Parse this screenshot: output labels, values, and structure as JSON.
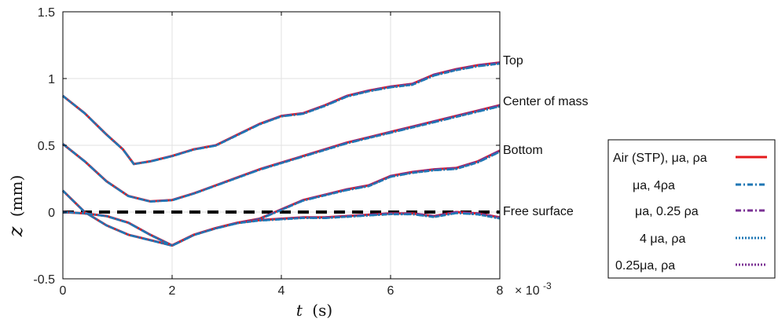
{
  "chart_data": {
    "type": "line",
    "xlabel_var": "t",
    "xlabel_unit": "(s)",
    "ylabel_var": "z",
    "ylabel_unit": "(mm)",
    "x_multiplier": "× 10",
    "x_multiplier_exp": "-3",
    "xlim": [
      0,
      0.008
    ],
    "ylim": [
      -0.5,
      1.5
    ],
    "x_ticks": [
      0,
      0.002,
      0.004,
      0.006,
      0.008
    ],
    "x_tick_labels": [
      "0",
      "2",
      "4",
      "6",
      "8"
    ],
    "y_ticks": [
      -0.5,
      0,
      0.5,
      1,
      1.5
    ],
    "y_tick_labels": [
      "-0.5",
      "0",
      "0.5",
      "1",
      "1.5"
    ],
    "grid": true,
    "legend_position": "right",
    "line_labels": [
      "Top",
      "Center of mass",
      "Bottom",
      "Free surface"
    ],
    "free_surface": {
      "label": "Free surface",
      "y": 0,
      "color": "#000000",
      "style": "dashed"
    },
    "series": [
      {
        "name": "Air (STP), μa, ρa",
        "color": "#e41a1c",
        "style": "solid"
      },
      {
        "name": "μa, 4ρa",
        "color": "#1f77b4",
        "style": "dashdot"
      },
      {
        "name": "μa, 0.25 ρa",
        "color": "#7b3294",
        "style": "dashdot"
      },
      {
        "name": "4 μa, ρa",
        "color": "#1f77b4",
        "style": "dotted"
      },
      {
        "name": "0.25μa, ρa",
        "color": "#7b3294",
        "style": "dotted"
      }
    ],
    "curves": [
      {
        "label": "Top",
        "x": [
          0,
          0.0004,
          0.0008,
          0.0011,
          0.0013,
          0.0016,
          0.002,
          0.0024,
          0.0028,
          0.0032,
          0.0036,
          0.004,
          0.0044,
          0.0048,
          0.0052,
          0.0056,
          0.006,
          0.0064,
          0.0068,
          0.0072,
          0.0076,
          0.008
        ],
        "y": [
          0.87,
          0.74,
          0.58,
          0.47,
          0.36,
          0.38,
          0.42,
          0.47,
          0.5,
          0.58,
          0.66,
          0.72,
          0.74,
          0.8,
          0.87,
          0.91,
          0.94,
          0.96,
          1.03,
          1.07,
          1.1,
          1.12
        ]
      },
      {
        "label": "Center of mass",
        "x": [
          0,
          0.0004,
          0.0008,
          0.0012,
          0.0016,
          0.002,
          0.0024,
          0.0028,
          0.0032,
          0.0036,
          0.004,
          0.0044,
          0.0048,
          0.0052,
          0.0056,
          0.006,
          0.0064,
          0.0068,
          0.0072,
          0.0076,
          0.008
        ],
        "y": [
          0.51,
          0.38,
          0.23,
          0.12,
          0.08,
          0.09,
          0.14,
          0.2,
          0.26,
          0.32,
          0.37,
          0.42,
          0.47,
          0.52,
          0.56,
          0.6,
          0.64,
          0.68,
          0.72,
          0.76,
          0.8
        ]
      },
      {
        "label": "Bottom",
        "x": [
          0,
          0.0004,
          0.0008,
          0.0012,
          0.0016,
          0.002,
          0.0024,
          0.0028,
          0.0032,
          0.0036,
          0.004,
          0.0044,
          0.0048,
          0.0052,
          0.0056,
          0.006,
          0.0064,
          0.0068,
          0.0072,
          0.0076,
          0.008
        ],
        "y": [
          0.16,
          0.0,
          -0.1,
          -0.17,
          -0.21,
          -0.25,
          -0.17,
          -0.12,
          -0.08,
          -0.05,
          0.02,
          0.09,
          0.13,
          0.17,
          0.2,
          0.27,
          0.3,
          0.32,
          0.33,
          0.38,
          0.46
        ]
      },
      {
        "label": "Free surface",
        "x": [
          0,
          0.0004,
          0.0008,
          0.0012,
          0.0016,
          0.002,
          0.0024,
          0.0028,
          0.0032,
          0.0036,
          0.004,
          0.0044,
          0.0048,
          0.0052,
          0.0056,
          0.006,
          0.0064,
          0.0068,
          0.0072,
          0.0076,
          0.008
        ],
        "y": [
          0.0,
          -0.01,
          -0.03,
          -0.08,
          -0.17,
          -0.25,
          -0.17,
          -0.12,
          -0.08,
          -0.06,
          -0.05,
          -0.04,
          -0.04,
          -0.03,
          -0.02,
          -0.01,
          -0.01,
          -0.03,
          0.0,
          -0.01,
          -0.04
        ]
      }
    ]
  }
}
